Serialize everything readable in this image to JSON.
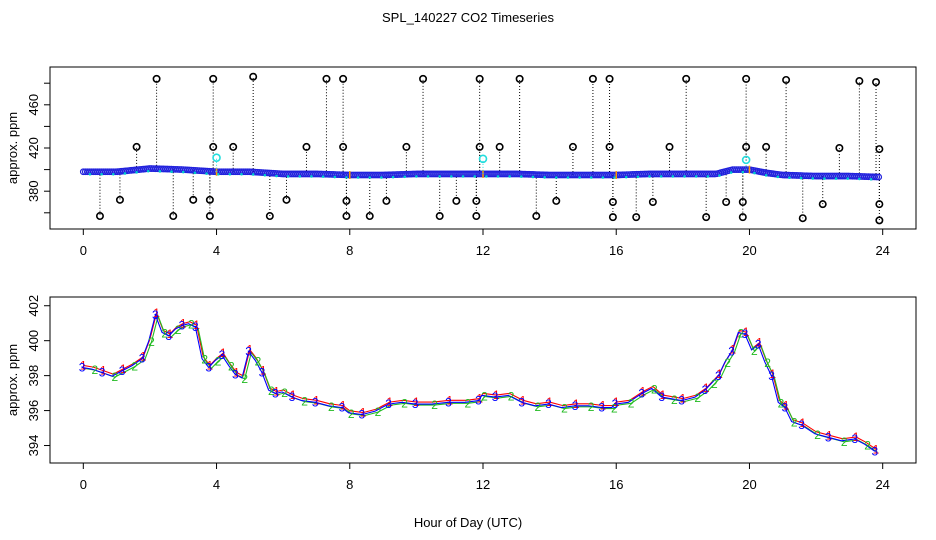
{
  "figure": {
    "title": "SPL_140227  CO2 Timeseries",
    "xlabel": "Hour of Day (UTC)"
  },
  "chart_data": [
    {
      "type": "scatter",
      "panel": "top",
      "ylabel": "approx. ppm",
      "xlim": [
        -1,
        25
      ],
      "ylim": [
        345,
        495
      ],
      "xticks": [
        0,
        4,
        8,
        12,
        16,
        20,
        24
      ],
      "yticks": [
        380,
        420,
        460
      ],
      "ytick_labels": [
        "380",
        "420",
        "460"
      ],
      "colors": {
        "baseline": "#2222dd",
        "baseline_edge": "#00cccc",
        "spike": "#000000",
        "highlight": "#22dddd",
        "orange_tick": "#ff9900"
      },
      "baseline": {
        "x": [
          0,
          1,
          2,
          3,
          3.5,
          4,
          5,
          6,
          7,
          8,
          9,
          10,
          11,
          12,
          13,
          14,
          15,
          16,
          17,
          18,
          19,
          19.5,
          20,
          20.5,
          21,
          22,
          23,
          24
        ],
        "y": [
          398,
          398,
          401,
          400,
          399,
          398,
          398,
          396,
          396,
          395,
          395,
          396,
          396,
          396,
          396,
          395,
          395,
          395,
          396,
          396,
          396,
          400,
          400,
          397,
          395,
          394,
          394,
          393
        ]
      },
      "spikes_high": [
        {
          "x": 1.6,
          "y": 421
        },
        {
          "x": 2.2,
          "y": 484
        },
        {
          "x": 3.9,
          "y": 484
        },
        {
          "x": 3.9,
          "y": 421
        },
        {
          "x": 4.5,
          "y": 421
        },
        {
          "x": 5.1,
          "y": 486
        },
        {
          "x": 6.7,
          "y": 421
        },
        {
          "x": 7.3,
          "y": 484
        },
        {
          "x": 7.8,
          "y": 484
        },
        {
          "x": 7.8,
          "y": 421
        },
        {
          "x": 9.7,
          "y": 421
        },
        {
          "x": 10.2,
          "y": 484
        },
        {
          "x": 11.9,
          "y": 421
        },
        {
          "x": 11.9,
          "y": 484
        },
        {
          "x": 12.5,
          "y": 421
        },
        {
          "x": 13.1,
          "y": 484
        },
        {
          "x": 14.7,
          "y": 421
        },
        {
          "x": 15.3,
          "y": 484
        },
        {
          "x": 15.8,
          "y": 484
        },
        {
          "x": 15.8,
          "y": 421
        },
        {
          "x": 17.6,
          "y": 421
        },
        {
          "x": 18.1,
          "y": 484
        },
        {
          "x": 19.9,
          "y": 421
        },
        {
          "x": 19.9,
          "y": 484
        },
        {
          "x": 20.5,
          "y": 421
        },
        {
          "x": 21.1,
          "y": 483
        },
        {
          "x": 22.7,
          "y": 420
        },
        {
          "x": 23.3,
          "y": 482
        },
        {
          "x": 23.8,
          "y": 481
        },
        {
          "x": 23.9,
          "y": 419
        }
      ],
      "spikes_low": [
        {
          "x": 0.5,
          "y": 357
        },
        {
          "x": 1.1,
          "y": 372
        },
        {
          "x": 2.7,
          "y": 357
        },
        {
          "x": 3.3,
          "y": 372
        },
        {
          "x": 3.8,
          "y": 372
        },
        {
          "x": 3.8,
          "y": 357
        },
        {
          "x": 5.6,
          "y": 357
        },
        {
          "x": 6.1,
          "y": 372
        },
        {
          "x": 7.9,
          "y": 371
        },
        {
          "x": 7.9,
          "y": 357
        },
        {
          "x": 8.6,
          "y": 357
        },
        {
          "x": 9.1,
          "y": 371
        },
        {
          "x": 10.7,
          "y": 357
        },
        {
          "x": 11.2,
          "y": 371
        },
        {
          "x": 11.8,
          "y": 371
        },
        {
          "x": 11.8,
          "y": 357
        },
        {
          "x": 13.6,
          "y": 357
        },
        {
          "x": 14.2,
          "y": 371
        },
        {
          "x": 15.9,
          "y": 370
        },
        {
          "x": 15.9,
          "y": 356
        },
        {
          "x": 16.6,
          "y": 356
        },
        {
          "x": 17.1,
          "y": 370
        },
        {
          "x": 18.7,
          "y": 356
        },
        {
          "x": 19.3,
          "y": 370
        },
        {
          "x": 19.8,
          "y": 370
        },
        {
          "x": 19.8,
          "y": 356
        },
        {
          "x": 21.6,
          "y": 355
        },
        {
          "x": 22.2,
          "y": 368
        },
        {
          "x": 23.9,
          "y": 368
        },
        {
          "x": 23.9,
          "y": 353
        }
      ],
      "highlights": [
        {
          "x": 4.0,
          "y": 411
        },
        {
          "x": 12.0,
          "y": 410
        },
        {
          "x": 19.9,
          "y": 409
        }
      ]
    },
    {
      "type": "line",
      "panel": "bottom",
      "ylabel": "approx. ppm",
      "xlim": [
        -1,
        25
      ],
      "ylim": [
        393,
        402.5
      ],
      "xticks": [
        0,
        4,
        8,
        12,
        16,
        20,
        24
      ],
      "yticks": [
        394,
        396,
        398,
        400,
        402
      ],
      "ytick_labels": [
        "394",
        "396",
        "398",
        "400",
        "402"
      ],
      "series": [
        {
          "name": "1",
          "color": "#ff0000"
        },
        {
          "name": "2",
          "color": "#22bb22"
        },
        {
          "name": "3",
          "color": "#0000ff"
        }
      ],
      "x": [
        0,
        0.3,
        0.6,
        0.9,
        1.2,
        1.5,
        1.8,
        2.0,
        2.2,
        2.4,
        2.6,
        2.8,
        3.0,
        3.2,
        3.4,
        3.6,
        3.8,
        4.0,
        4.2,
        4.4,
        4.6,
        4.8,
        5.0,
        5.2,
        5.4,
        5.6,
        5.8,
        6.0,
        6.3,
        6.6,
        7.0,
        7.4,
        7.8,
        8.0,
        8.4,
        8.8,
        9.2,
        9.6,
        10.0,
        10.5,
        11.0,
        11.5,
        11.9,
        12.0,
        12.4,
        12.8,
        13.2,
        13.6,
        14.0,
        14.4,
        14.8,
        15.2,
        15.6,
        15.9,
        16.0,
        16.4,
        16.8,
        17.1,
        17.4,
        17.7,
        18.0,
        18.4,
        18.7,
        18.9,
        19.1,
        19.3,
        19.5,
        19.7,
        19.9,
        20.1,
        20.3,
        20.5,
        20.7,
        20.9,
        21.1,
        21.3,
        21.6,
        22.0,
        22.4,
        22.8,
        23.2,
        23.5,
        23.8
      ],
      "y": [
        398.5,
        398.4,
        398.2,
        398.0,
        398.3,
        398.6,
        399.0,
        400.0,
        401.5,
        400.5,
        400.3,
        400.7,
        400.9,
        401.0,
        400.8,
        399.0,
        398.5,
        398.9,
        399.2,
        398.6,
        398.1,
        397.9,
        399.4,
        398.9,
        398.2,
        397.2,
        397.0,
        397.1,
        396.8,
        396.6,
        396.5,
        396.3,
        396.2,
        395.9,
        395.8,
        396.0,
        396.4,
        396.5,
        396.4,
        396.4,
        396.5,
        396.5,
        396.6,
        396.9,
        396.8,
        396.9,
        396.5,
        396.3,
        396.4,
        396.2,
        396.3,
        396.3,
        396.2,
        396.2,
        396.4,
        396.5,
        397.0,
        397.3,
        396.8,
        396.7,
        396.6,
        396.8,
        397.2,
        397.6,
        398.0,
        398.8,
        399.4,
        400.5,
        400.4,
        399.5,
        399.8,
        398.8,
        398.0,
        396.5,
        396.2,
        395.4,
        395.2,
        394.7,
        394.5,
        394.3,
        394.4,
        394.1,
        393.7
      ]
    }
  ]
}
